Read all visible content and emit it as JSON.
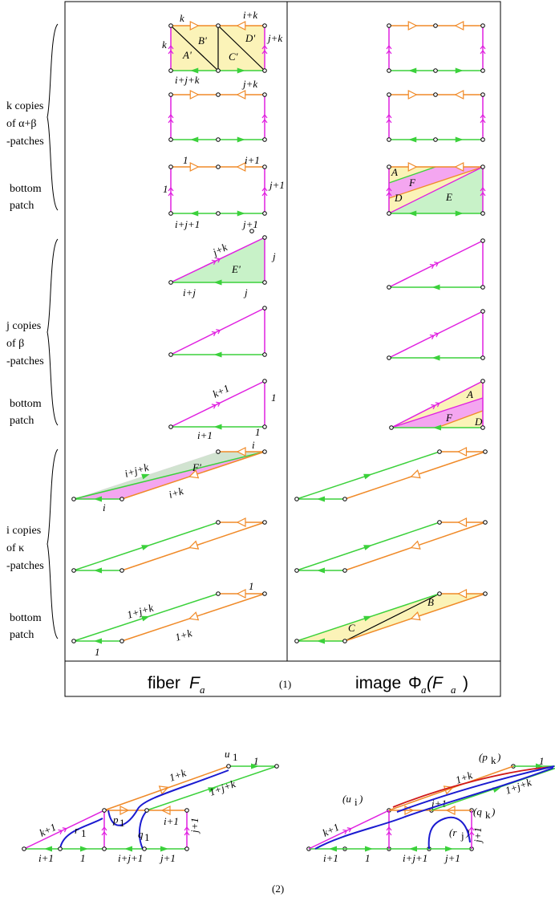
{
  "colors": {
    "orange": "#f08a28",
    "green": "#3bd13b",
    "magenta": "#e020e0",
    "blue": "#1a1ad0",
    "red": "#d01a1a",
    "yellow_fill": "#fbf3b8",
    "pink_fill": "#f4a6f0",
    "green_fill": "#c8f2c8"
  },
  "side_labels": {
    "group_k": [
      "k copies",
      "of α+β",
      "-patches"
    ],
    "group_k_bottom": [
      "bottom",
      "patch"
    ],
    "group_j": [
      "j copies",
      "of β",
      "-patches"
    ],
    "group_j_bottom": [
      "bottom",
      "patch"
    ],
    "group_i": [
      "i copies",
      "of κ",
      "-patches"
    ],
    "group_i_bottom": [
      "bottom",
      "patch"
    ]
  },
  "captions": {
    "fiber": "fiber",
    "fiber_sym": "F",
    "fiber_sub": "a",
    "figure1": "(1)",
    "image": "image",
    "image_phi": "Φ",
    "image_sub": "a",
    "image_arg": "(F",
    "image_arg_sub": "a",
    "image_close": ")",
    "figure2": "(2)"
  },
  "left_labels": {
    "r1_top": "k",
    "r1_topright": "i+k",
    "r1_left": "k",
    "r1_right": "j+k",
    "r1_bottom": "i+j+k",
    "B": "B'",
    "D": "D'",
    "A": "A'",
    "C": "C'",
    "r2_top": "j+k",
    "r3_top_left": "1",
    "r3_top_right": "i+1",
    "r3_left": "1",
    "r3_right": "j+1",
    "r3_bottom_left": "i+j+1",
    "r3_bottom_right": "j+1",
    "t1_hyp": "j+k",
    "t1_right": "j",
    "t1_E": "E'",
    "t1_bottom_left": "i+j",
    "t1_bottom_right": "j",
    "t3_hyp": "k+1",
    "t3_right": "1",
    "t3_bottom_left": "i+1",
    "t3_bottom_right": "1",
    "p1_top_right": "i",
    "p1_top": "i+j+k",
    "p1_F": "F'",
    "p1_mid": "i+k",
    "p1_bottom": "i",
    "p3_top_right": "1",
    "p3_top": "1+j+k",
    "p3_mid": "1+k",
    "p3_bottom": "1"
  },
  "right_labels": {
    "A": "A",
    "F": "F",
    "D": "D",
    "E": "E",
    "A2": "A",
    "F2": "F",
    "D2": "D",
    "B": "B",
    "C": "C"
  },
  "bottom_left_labels": {
    "u1": "u",
    "u1_sub": "1",
    "one_top": "1",
    "one_k": "1+k",
    "one_jk": "1+j+k",
    "k1": "k+1",
    "r1": "r",
    "r1_sub": "1",
    "p1": "p",
    "p1_sub": "1",
    "q1": "q",
    "q1_sub": "1",
    "i1_top": "i+1",
    "j1_right": "j+1",
    "b_i1": "i+1",
    "b_1": "1",
    "b_ij1": "i+j+1",
    "b_j1": "j+1"
  },
  "bottom_right_labels": {
    "pk": "(p",
    "pk_sub": "k",
    "pk_close": ")",
    "one_top": "1",
    "one_k": "1+k",
    "one_jk": "1+j+k",
    "ui": "(u",
    "ui_sub": "i",
    "ui_close": ")",
    "i1_top": "i+1",
    "qk": "(q",
    "qk_sub": "k",
    "qk_close": ")",
    "k1": "k+1",
    "rj": "(r",
    "rj_sub": "j",
    "rj_close": ")",
    "j1_right": "j+1",
    "b_i1": "i+1",
    "b_1": "1",
    "b_ij1": "i+j+1",
    "b_j1": "j+1"
  }
}
